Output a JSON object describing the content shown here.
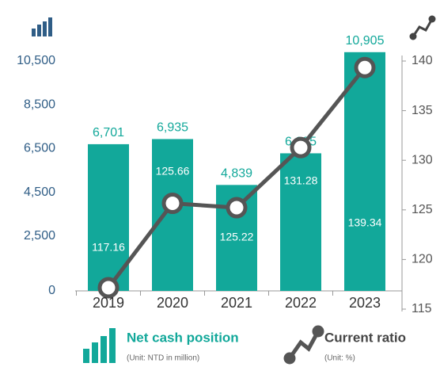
{
  "chart_data": {
    "type": "bar",
    "categories": [
      "2019",
      "2020",
      "2021",
      "2022",
      "2023"
    ],
    "series": [
      {
        "name": "Net cash position",
        "subtitle": "(Unit: NTD in million)",
        "type": "bar",
        "color": "#12a89a",
        "values": [
          6701,
          6935,
          4839,
          6285,
          10905
        ],
        "value_labels": [
          "6,701",
          "6,935",
          "4,839",
          "6,285",
          "10,905"
        ]
      },
      {
        "name": "Current ratio",
        "subtitle": "(Unit: %)",
        "type": "line",
        "axis": "y2",
        "color": "#555555",
        "values": [
          117.16,
          125.66,
          125.22,
          131.28,
          139.34
        ]
      }
    ],
    "ylim": [
      0,
      10500
    ],
    "yticks": [
      0,
      {
        "value": 2500,
        "label": "2,500"
      },
      {
        "value": 4500,
        "label": "4,500"
      },
      {
        "value": 6500,
        "label": "6,500"
      },
      {
        "value": 8500,
        "label": "8,500"
      },
      {
        "value": 10500,
        "label": "10,500"
      }
    ],
    "y2lim": [
      115,
      140
    ],
    "y2ticks": [
      115,
      120,
      125,
      130,
      135,
      140
    ]
  }
}
